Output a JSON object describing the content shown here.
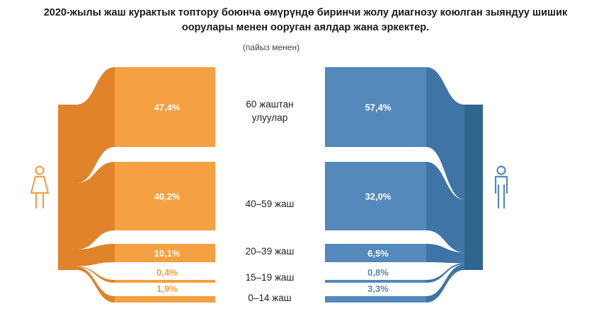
{
  "header": {
    "title_line1": "2020-жылы жаш курактык топтору боюнча өмүрүндө биринчи жолу диагнозу коюлган зыяндуу шишик",
    "title_line2": "оорулары менен ооруган аялдар жана эркектер.",
    "subtitle": "(пайыз менен)"
  },
  "chart_data": {
    "type": "bar",
    "categories": [
      "60 жаштан улуулар",
      "40–59 жаш",
      "20–39 жаш",
      "15–19 жаш",
      "0–14 жаш"
    ],
    "category_lines": [
      [
        "60 жаштан",
        "улуулар"
      ],
      [
        "40–59 жаш"
      ],
      [
        "20–39 жаш"
      ],
      [
        "15–19 жаш"
      ],
      [
        "0–14 жаш"
      ]
    ],
    "series": [
      {
        "values": [
          47.4,
          40.2,
          10.1,
          0.4,
          1.9
        ],
        "labels": [
          "47,4%",
          "40,2%",
          "10,1%",
          "0,4%",
          "1,9%"
        ],
        "color": "#F4A043",
        "dark": "#E0832B",
        "icon": "female-icon"
      },
      {
        "values": [
          57.4,
          32.0,
          6.5,
          0.8,
          3.3
        ],
        "labels": [
          "57,4%",
          "32,0%",
          "6,5%",
          "0,8%",
          "3,3%"
        ],
        "color": "#5489BB",
        "dark": "#3F74A6",
        "icon": "male-icon"
      }
    ]
  }
}
